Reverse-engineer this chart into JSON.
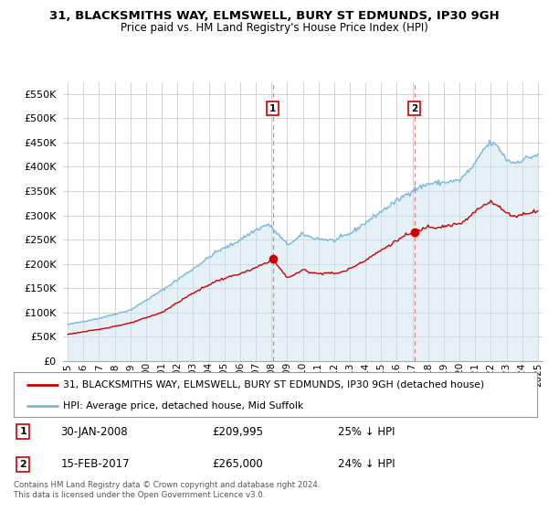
{
  "title1": "31, BLACKSMITHS WAY, ELMSWELL, BURY ST EDMUNDS, IP30 9GH",
  "title2": "Price paid vs. HM Land Registry's House Price Index (HPI)",
  "legend_line1": "31, BLACKSMITHS WAY, ELMSWELL, BURY ST EDMUNDS, IP30 9GH (detached house)",
  "legend_line2": "HPI: Average price, detached house, Mid Suffolk",
  "annotation1_label": "1",
  "annotation1_date": "30-JAN-2008",
  "annotation1_price": "£209,995",
  "annotation1_hpi": "25% ↓ HPI",
  "annotation2_label": "2",
  "annotation2_date": "15-FEB-2017",
  "annotation2_price": "£265,000",
  "annotation2_hpi": "24% ↓ HPI",
  "footer": "Contains HM Land Registry data © Crown copyright and database right 2024.\nThis data is licensed under the Open Government Licence v3.0.",
  "hpi_color": "#7ab8d9",
  "hpi_fill_color": "#cce4f0",
  "price_color": "#cc0000",
  "vline_color": "#e08080",
  "background_color": "#ffffff",
  "grid_color": "#cccccc",
  "ylim": [
    0,
    575000
  ],
  "yticks": [
    0,
    50000,
    100000,
    150000,
    200000,
    250000,
    300000,
    350000,
    400000,
    450000,
    500000,
    550000
  ],
  "sale1_year": 2008.08,
  "sale1_price": 209995,
  "sale2_year": 2017.12,
  "sale2_price": 265000,
  "xlim_start": 1994.7,
  "xlim_end": 2025.3
}
